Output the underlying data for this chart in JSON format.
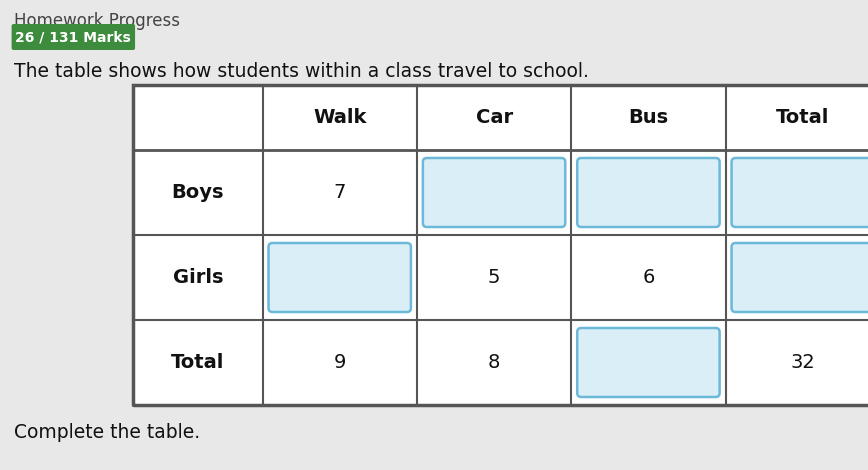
{
  "title": "The table shows how students within a class travel to school.",
  "subtitle": "Complete the table.",
  "badge_text": "26 / 131 Marks",
  "badge_bg": "#3d8b3d",
  "badge_text_color": "#ffffff",
  "col_headers": [
    "Walk",
    "Car",
    "Bus",
    "Total"
  ],
  "row_labels": [
    "Boys",
    "Girls",
    "Total"
  ],
  "cell_values": [
    [
      "7",
      "",
      "",
      ""
    ],
    [
      "",
      "5",
      "6",
      ""
    ],
    [
      "9",
      "8",
      "",
      "32"
    ]
  ],
  "blank_cells": [
    [
      false,
      true,
      true,
      true
    ],
    [
      true,
      false,
      false,
      true
    ],
    [
      false,
      false,
      true,
      false
    ]
  ],
  "bg_color": "#e8e8e8",
  "table_bg": "#ffffff",
  "blank_fill": "#daeef8",
  "blank_border": "#6bb8d8",
  "header_font_size": 14,
  "cell_font_size": 14,
  "label_font_size": 14,
  "title_font_size": 13.5,
  "badge_font_size": 10,
  "homework_font_size": 12
}
